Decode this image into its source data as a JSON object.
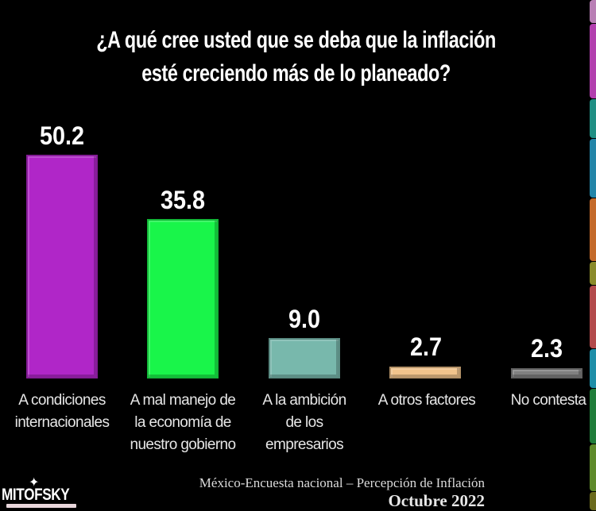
{
  "title": {
    "line1": "¿A qué cree usted que se deba que la inflación",
    "line2": "esté creciendo más de lo planeado?"
  },
  "chart_data": {
    "type": "bar",
    "title": "¿A qué cree usted que se deba que la inflación esté creciendo más de lo planeado?",
    "xlabel": "",
    "ylabel": "",
    "ylim": [
      0,
      55
    ],
    "grid": false,
    "legend": "none",
    "categories": [
      "A condiciones internacionales",
      "A mal manejo de la economía de nuestro gobierno",
      "A la ambición de los empresarios",
      "A otros factores",
      "No contesta"
    ],
    "values": [
      50.2,
      35.8,
      9.0,
      2.7,
      2.3
    ],
    "value_labels": [
      "50.2",
      "35.8",
      "9.0",
      "2.7",
      "2.3"
    ],
    "colors": [
      "#b026c8",
      "#19f54a",
      "#78b8ac",
      "#f2c48c",
      "#808080"
    ]
  },
  "labels": {
    "c0": [
      "A condiciones",
      "internacionales"
    ],
    "c1": [
      "A mal manejo de",
      "la economía de",
      "nuestro gobierno"
    ],
    "c2": [
      "A la ambición",
      "de los",
      "empresarios"
    ],
    "c3": [
      "A otros factores"
    ],
    "c4": [
      "No contesta"
    ]
  },
  "footer": {
    "logo_text": "MITOFSKY",
    "source": "México-Encuesta nacional – Percepción de Inflación",
    "date": "Octubre 2022"
  },
  "side_strip_colors": [
    "#b97fb5",
    "#b23fae",
    "#1f8f84",
    "#2385a8",
    "#c46a2a",
    "#8a8a2a",
    "#b34a4c",
    "#1e8ea8",
    "#1f7d3a",
    "#5e8a2a",
    "#6a6a1c"
  ]
}
